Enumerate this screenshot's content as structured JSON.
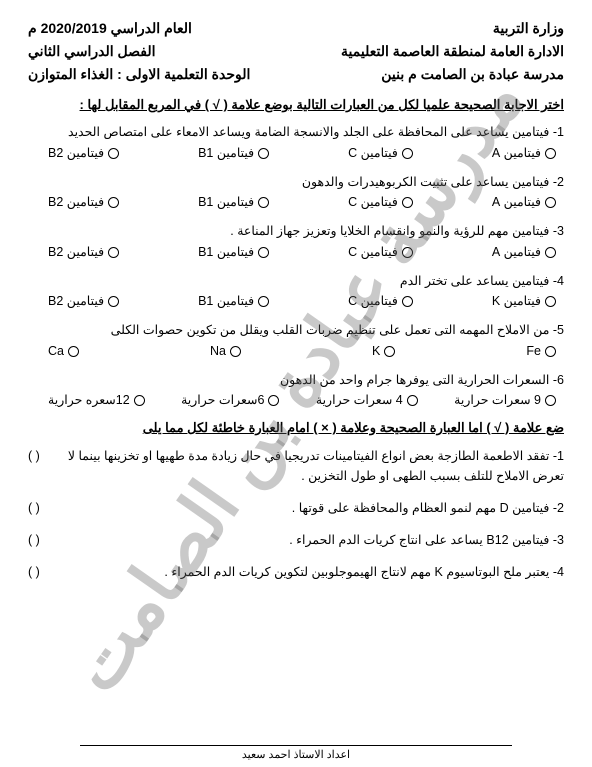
{
  "header": {
    "right": {
      "line1": "وزارة التربية",
      "line2": "الادارة العامة لمنطقة العاصمة التعليمية",
      "line3": "مدرسة عبادة بن الصامت م بنين"
    },
    "left": {
      "line1": "العام الدراسي 2020/2019 م",
      "line2": "الفصل الدراسي الثاني",
      "line3": "الوحدة التعلمية الاولى : الغذاء المتوازن"
    }
  },
  "watermark": "مدرسة عبادة بن الصامت",
  "section1": {
    "title": "اختر الاجابة الصحيحة علميا لكل من العبارات التالية بوضع علامة ( √ ) في المربع المقابل لها :",
    "questions": [
      {
        "text": "1- فيتامين يساعد على المحافظة على الجلد والانسجة الضامة ويساعد الامعاء على امتصاص الحديد",
        "opts": [
          "فيتامين A",
          "فيتامين C",
          "فيتامين B1",
          "فيتامين B2"
        ]
      },
      {
        "text": "2- فيتامين يساعد على تثبيت الكربوهيدرات والدهون",
        "opts": [
          "فيتامين A",
          "فيتامين C",
          "فيتامين B1",
          "فيتامين B2"
        ]
      },
      {
        "text": "3- فيتامين مهم للرؤية والنمو وانقسام الخلايا وتعزيز جهاز المناعة .",
        "opts": [
          "فيتامين A",
          "فيتامين C",
          "فيتامين B1",
          "فيتامين B2"
        ]
      },
      {
        "text": "4- فيتامين يساعد على تختر الدم",
        "opts": [
          "فيتامين K",
          "فيتامين C",
          "فيتامين B1",
          "فيتامين B2"
        ]
      },
      {
        "text": "5- من الاملاح المهمه التى تعمل على تنظيم ضربات القلب ويقلل من تكوين حصوات الكلى",
        "opts": [
          "Fe",
          "K",
          "Na",
          "Ca"
        ]
      },
      {
        "text": "6- السعرات الحرارية التى يوفرها جرام واحد من الدهون",
        "opts": [
          "9 سعرات حرارية",
          "4 سعرات حرارية",
          "6سعرات حرارية",
          "12سعره حرارية"
        ]
      }
    ]
  },
  "section2": {
    "title": "ضع علامة ( √ ) اما العبارة الصحيحة وعلامة ( × ) امام العبارة خاطئة لكل مما يلى",
    "paren": "(        )",
    "items": [
      "1- تفقد الاطعمة الطازجة بعض انواع الفيتامينات تدريجيا في حال زيادة مدة طهيها او تخزينها بينما لا تعرض الاملاح للتلف بسبب الطهى او طول التخزين .",
      "2- فيتامين D مهم لنمو العظام والمحافظة على قوتها .",
      "3- فيتامين B12 يساعد على انتاج كريات الدم الحمراء .",
      "4- يعتبر ملح البوتاسيوم K مهم لانتاج الهيموجلوبين لتكوين كريات الدم الحمراء ."
    ]
  },
  "footer": "اعداد الاستاذ احمد سعيد"
}
